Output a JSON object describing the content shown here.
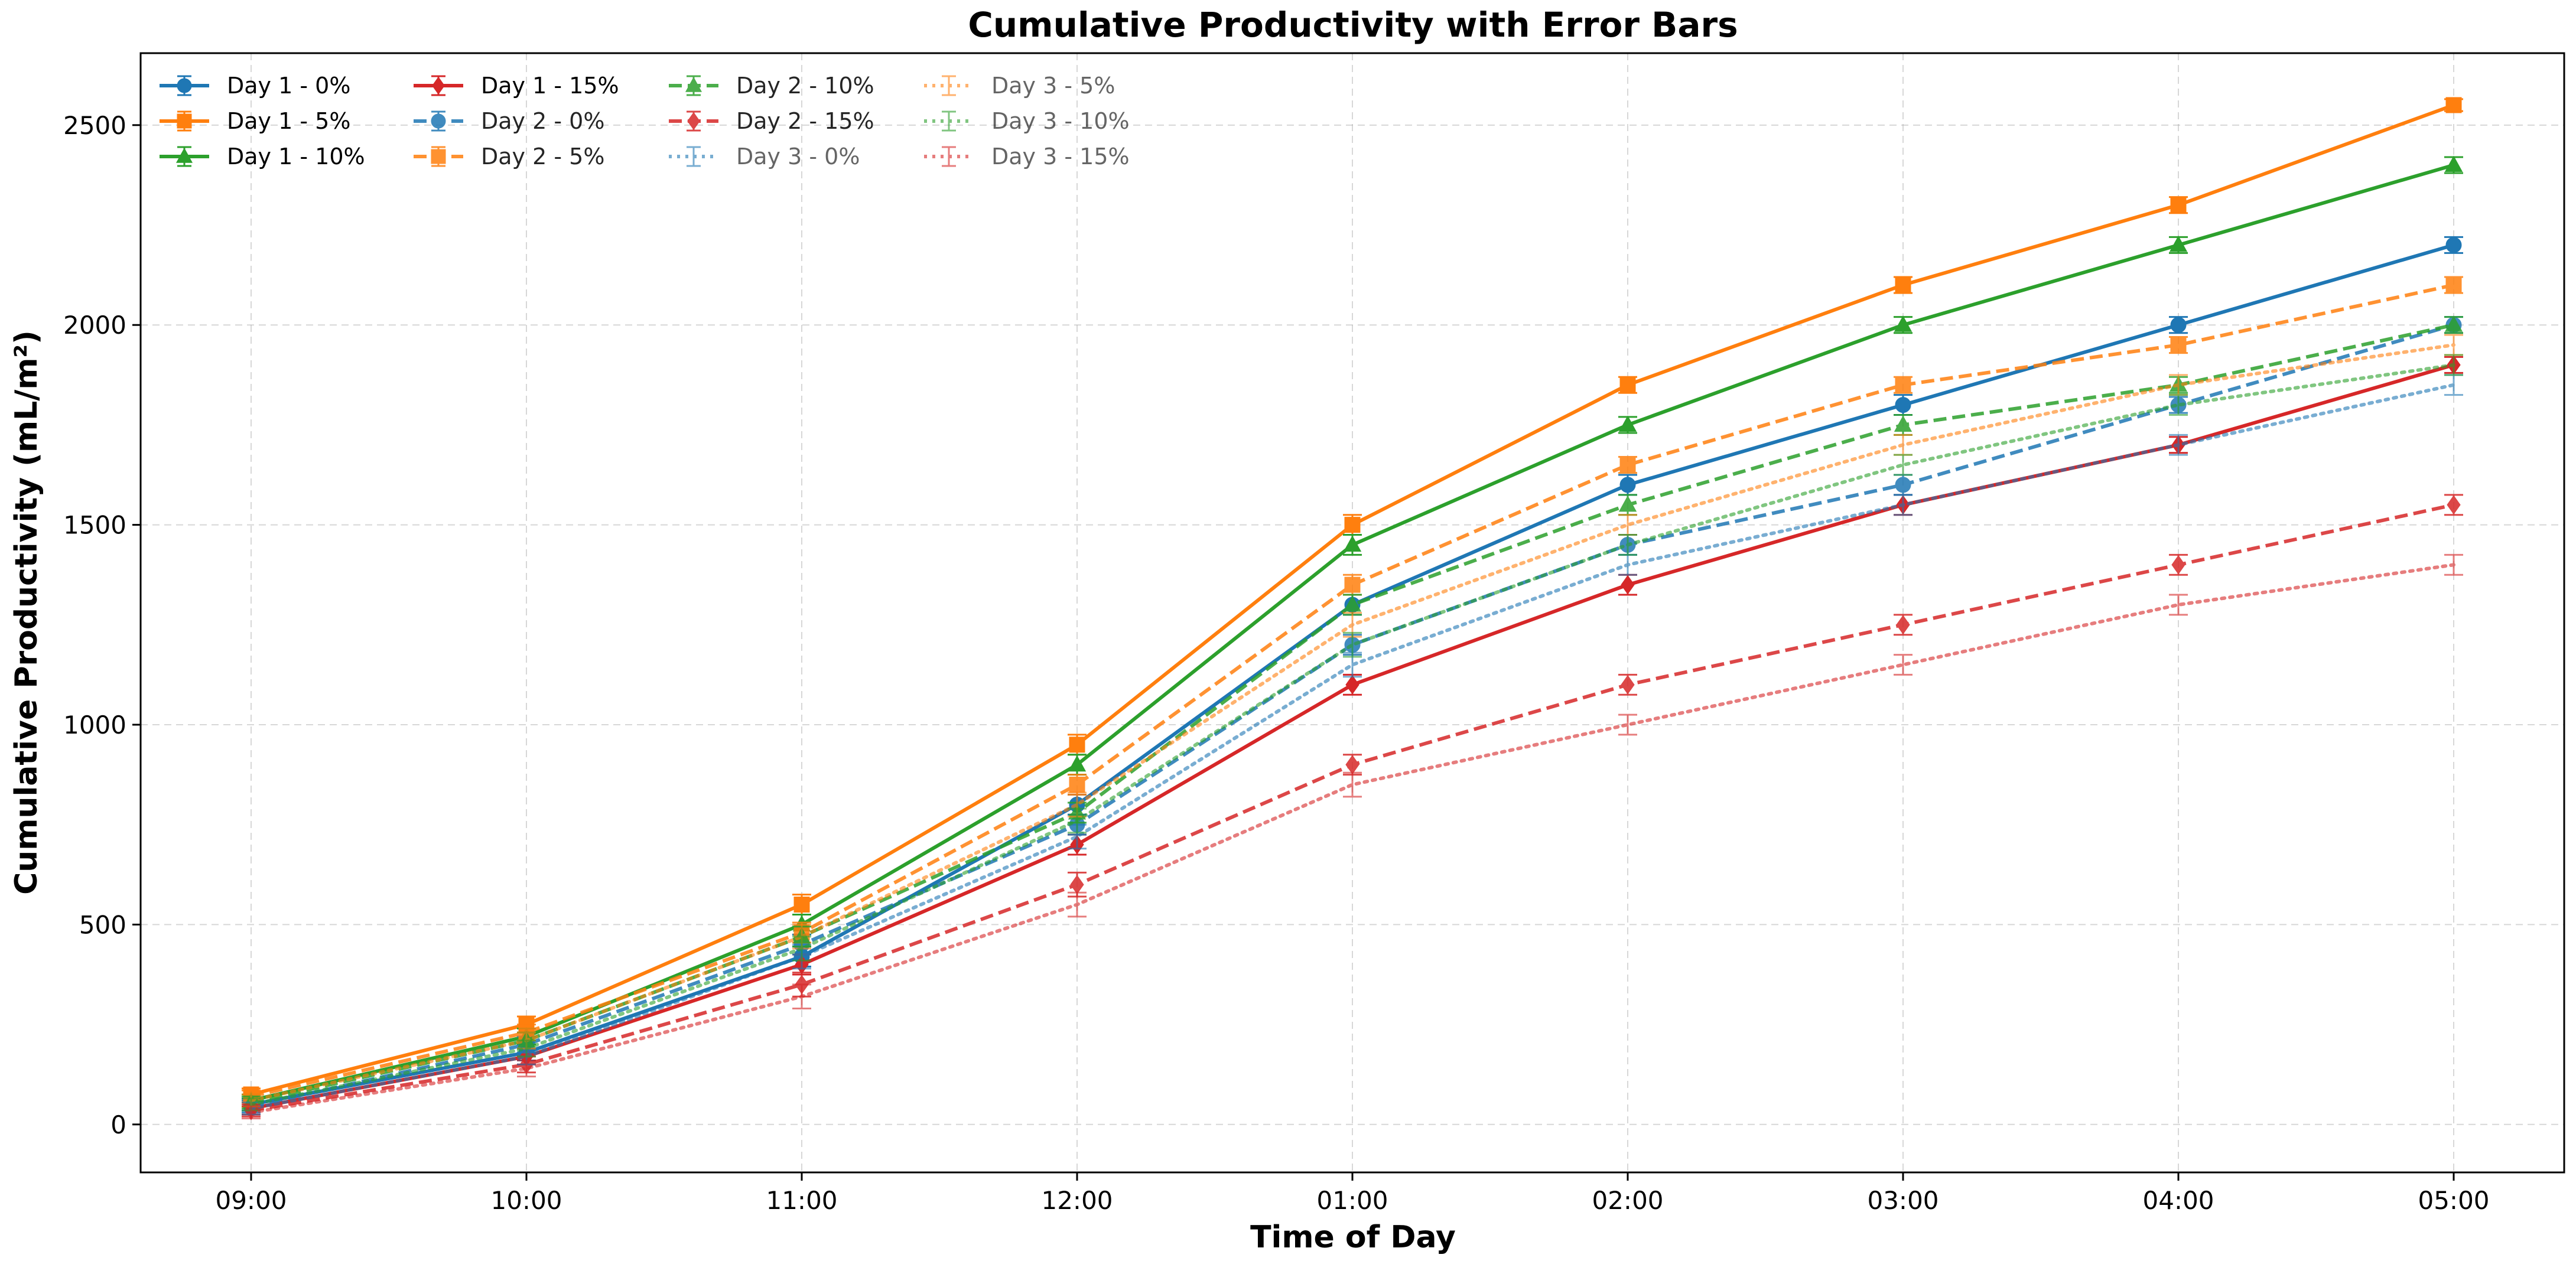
{
  "chart_data": {
    "type": "line",
    "title": "Cumulative Productivity with Error Bars",
    "xlabel": "Time of Day",
    "ylabel": "Cumulative Productivity (mL/m²)",
    "x": [
      "09:00",
      "10:00",
      "11:00",
      "12:00",
      "01:00",
      "02:00",
      "03:00",
      "04:00",
      "05:00"
    ],
    "ylim": [
      -120,
      2680
    ],
    "yticks": [
      0,
      500,
      1000,
      1500,
      2000,
      2500
    ],
    "grid": true,
    "legend_position": "top-left",
    "series": [
      {
        "name": "Day 1 - 0%",
        "color": "#1f77b4",
        "linestyle": "solid",
        "marker": "circle",
        "alpha": 1.0,
        "values": [
          50,
          180,
          420,
          800,
          1300,
          1600,
          1800,
          2000,
          2200
        ],
        "errors": [
          15,
          20,
          25,
          25,
          25,
          25,
          25,
          20,
          20
        ]
      },
      {
        "name": "Day 1 - 5%",
        "color": "#ff7f0e",
        "linestyle": "solid",
        "marker": "square",
        "alpha": 1.0,
        "values": [
          75,
          250,
          550,
          950,
          1500,
          1850,
          2100,
          2300,
          2550
        ],
        "errors": [
          15,
          20,
          25,
          25,
          25,
          20,
          20,
          20,
          15
        ]
      },
      {
        "name": "Day 1 - 10%",
        "color": "#2ca02c",
        "linestyle": "solid",
        "marker": "triangle",
        "alpha": 1.0,
        "values": [
          60,
          220,
          500,
          900,
          1450,
          1750,
          2000,
          2200,
          2400
        ],
        "errors": [
          15,
          20,
          25,
          25,
          25,
          20,
          20,
          20,
          20
        ]
      },
      {
        "name": "Day 1 - 15%",
        "color": "#d62728",
        "linestyle": "solid",
        "marker": "diamond",
        "alpha": 1.0,
        "values": [
          40,
          170,
          400,
          700,
          1100,
          1350,
          1550,
          1700,
          1900
        ],
        "errors": [
          15,
          20,
          25,
          25,
          25,
          25,
          25,
          20,
          20
        ]
      },
      {
        "name": "Day 2 - 0%",
        "color": "#1f77b4",
        "linestyle": "dashed",
        "marker": "circle",
        "alpha": 0.85,
        "values": [
          45,
          200,
          450,
          750,
          1200,
          1450,
          1600,
          1800,
          2000
        ],
        "errors": [
          15,
          20,
          25,
          25,
          25,
          25,
          25,
          20,
          20
        ]
      },
      {
        "name": "Day 2 - 5%",
        "color": "#ff7f0e",
        "linestyle": "dashed",
        "marker": "square",
        "alpha": 0.85,
        "values": [
          70,
          230,
          480,
          850,
          1350,
          1650,
          1850,
          1950,
          2100
        ],
        "errors": [
          15,
          20,
          25,
          25,
          25,
          20,
          20,
          20,
          20
        ]
      },
      {
        "name": "Day 2 - 10%",
        "color": "#2ca02c",
        "linestyle": "dashed",
        "marker": "triangle",
        "alpha": 0.85,
        "values": [
          55,
          210,
          470,
          780,
          1300,
          1550,
          1750,
          1850,
          2000
        ],
        "errors": [
          15,
          20,
          25,
          25,
          25,
          25,
          25,
          20,
          20
        ]
      },
      {
        "name": "Day 2 - 15%",
        "color": "#d62728",
        "linestyle": "dashed",
        "marker": "diamond",
        "alpha": 0.85,
        "values": [
          35,
          150,
          350,
          600,
          900,
          1100,
          1250,
          1400,
          1550
        ],
        "errors": [
          15,
          20,
          30,
          30,
          25,
          25,
          25,
          25,
          25
        ]
      },
      {
        "name": "Day 3 - 0%",
        "color": "#1f77b4",
        "linestyle": "dotted",
        "marker": "none",
        "alpha": 0.6,
        "values": [
          40,
          170,
          420,
          720,
          1150,
          1400,
          1550,
          1700,
          1850
        ],
        "errors": [
          15,
          20,
          30,
          30,
          30,
          25,
          25,
          25,
          25
        ]
      },
      {
        "name": "Day 3 - 5%",
        "color": "#ff7f0e",
        "linestyle": "dotted",
        "marker": "none",
        "alpha": 0.6,
        "values": [
          60,
          210,
          470,
          800,
          1250,
          1500,
          1700,
          1850,
          1950
        ],
        "errors": [
          15,
          20,
          30,
          30,
          30,
          25,
          25,
          25,
          25
        ]
      },
      {
        "name": "Day 3 - 10%",
        "color": "#2ca02c",
        "linestyle": "dotted",
        "marker": "none",
        "alpha": 0.6,
        "values": [
          50,
          190,
          440,
          760,
          1200,
          1450,
          1650,
          1800,
          1900
        ],
        "errors": [
          15,
          20,
          30,
          30,
          30,
          25,
          25,
          25,
          25
        ]
      },
      {
        "name": "Day 3 - 15%",
        "color": "#d62728",
        "linestyle": "dotted",
        "marker": "none",
        "alpha": 0.6,
        "values": [
          30,
          140,
          320,
          550,
          850,
          1000,
          1150,
          1300,
          1400
        ],
        "errors": [
          15,
          20,
          30,
          30,
          30,
          25,
          25,
          25,
          25
        ]
      }
    ]
  }
}
